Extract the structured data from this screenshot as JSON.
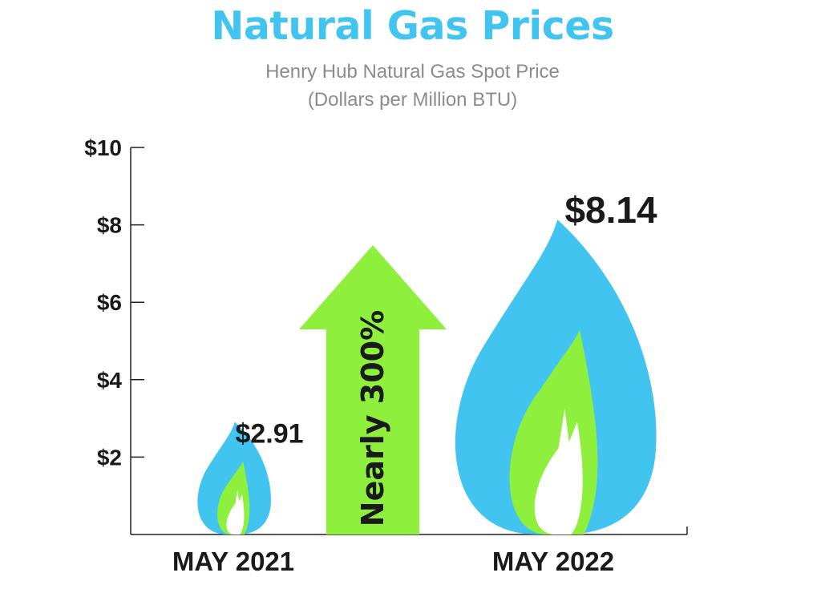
{
  "title": "Natural Gas Prices",
  "subtitle_line1": "Henry Hub Natural Gas Spot Price",
  "subtitle_line2": "(Dollars per Million BTU)",
  "colors": {
    "title": "#41c4f0",
    "flame_outer": "#41c4f0",
    "flame_inner": "#8ef03c",
    "arrow": "#8ef03c",
    "text": "#1a1a1a"
  },
  "annotation": "Nearly 300%",
  "chart_data": {
    "type": "bar",
    "mark_style": "flame",
    "categories": [
      "MAY 2021",
      "MAY 2022"
    ],
    "values": [
      2.91,
      8.14
    ],
    "value_labels": [
      "$2.91",
      "$8.14"
    ],
    "title": "Natural Gas Prices",
    "subtitle": "Henry Hub Natural Gas Spot Price (Dollars per Million BTU)",
    "ylim": [
      0,
      10
    ],
    "yticks": [
      2,
      4,
      6,
      8,
      10
    ],
    "ytick_labels": [
      "$2",
      "$4",
      "$6",
      "$8",
      "$10"
    ],
    "grid": false,
    "legend": "none"
  }
}
